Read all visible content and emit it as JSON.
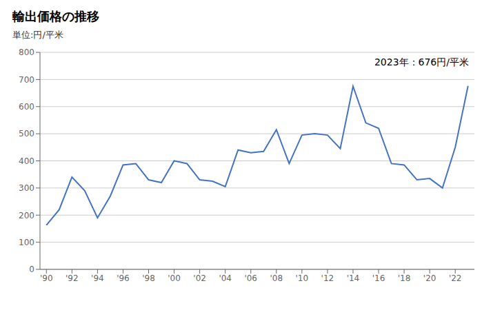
{
  "chart_data": {
    "type": "line",
    "title": "輸出価格の推移",
    "subtitle": "単位:円/平米",
    "annotation": "2023年：676円/平米",
    "x": [
      1990,
      1991,
      1992,
      1993,
      1994,
      1995,
      1996,
      1997,
      1998,
      1999,
      2000,
      2001,
      2002,
      2003,
      2004,
      2005,
      2006,
      2007,
      2008,
      2009,
      2010,
      2011,
      2012,
      2013,
      2014,
      2015,
      2016,
      2017,
      2018,
      2019,
      2020,
      2021,
      2022,
      2023
    ],
    "values": [
      163,
      220,
      340,
      290,
      190,
      270,
      385,
      390,
      330,
      320,
      400,
      390,
      330,
      325,
      305,
      440,
      430,
      435,
      515,
      390,
      495,
      500,
      495,
      445,
      675,
      540,
      520,
      390,
      385,
      330,
      335,
      300,
      450,
      676
    ],
    "color": "#4472c4",
    "xlim": [
      1989.5,
      2023.5
    ],
    "xticks": [
      {
        "value": 1990,
        "label": "'90"
      },
      {
        "value": 1992,
        "label": "'92"
      },
      {
        "value": 1994,
        "label": "'94"
      },
      {
        "value": 1996,
        "label": "'96"
      },
      {
        "value": 1998,
        "label": "'98"
      },
      {
        "value": 2000,
        "label": "'00"
      },
      {
        "value": 2002,
        "label": "'02"
      },
      {
        "value": 2004,
        "label": "'04"
      },
      {
        "value": 2006,
        "label": "'06"
      },
      {
        "value": 2008,
        "label": "'08"
      },
      {
        "value": 2010,
        "label": "'10"
      },
      {
        "value": 2012,
        "label": "'12"
      },
      {
        "value": 2014,
        "label": "'14"
      },
      {
        "value": 2016,
        "label": "'16"
      },
      {
        "value": 2018,
        "label": "'18"
      },
      {
        "value": 2020,
        "label": "'20"
      },
      {
        "value": 2022,
        "label": "'22"
      }
    ],
    "ylim": [
      0,
      800
    ],
    "yticks": [
      0,
      100,
      200,
      300,
      400,
      500,
      600,
      700,
      800
    ],
    "grid": "y"
  }
}
